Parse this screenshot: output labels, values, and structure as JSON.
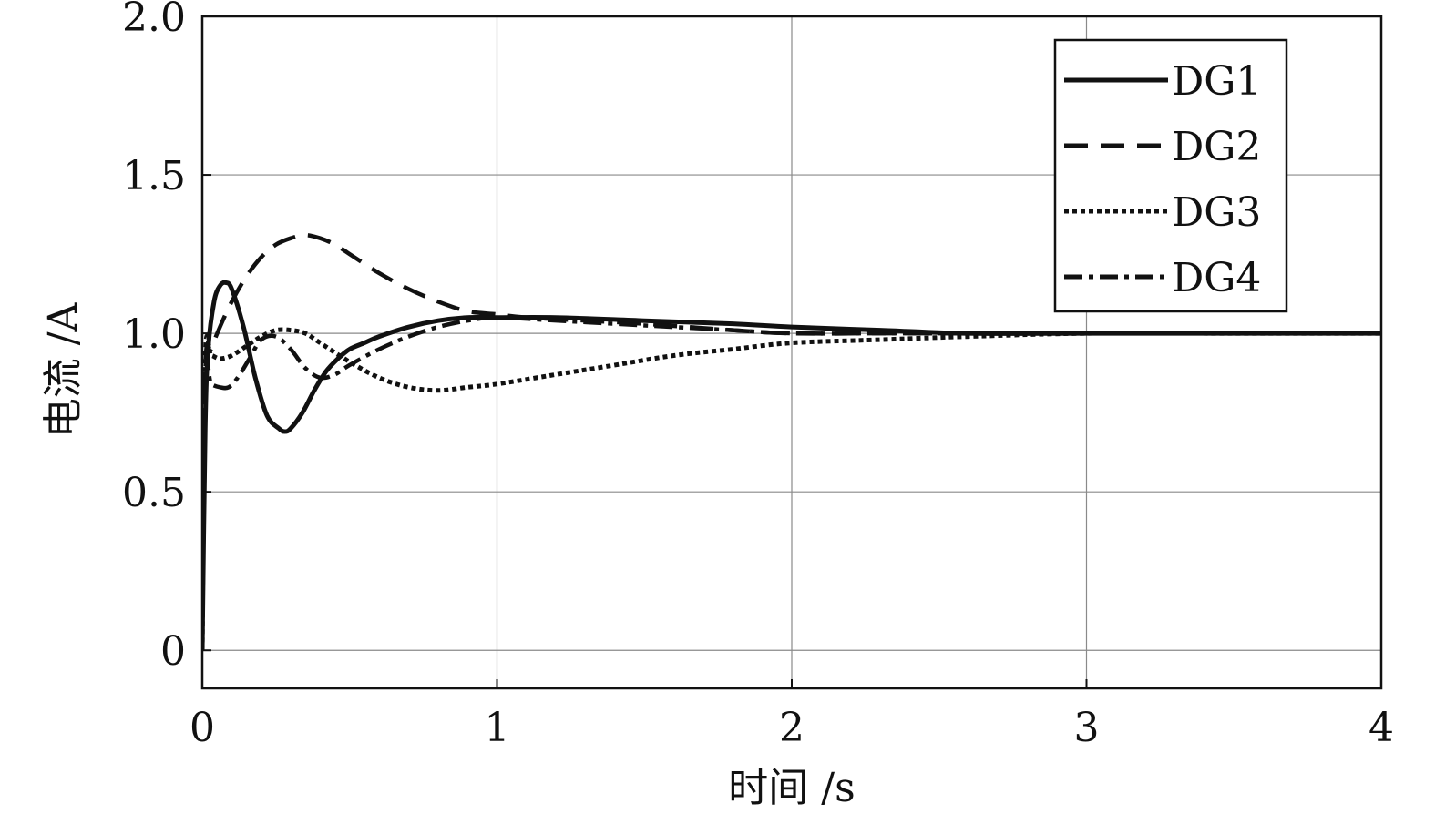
{
  "chart_data": {
    "type": "line",
    "xlabel": "时间 /s",
    "ylabel": "电流 /A",
    "xlim": [
      0,
      4
    ],
    "ylim": [
      -0.12,
      2.0
    ],
    "xticks": [
      0,
      1,
      2,
      3,
      4
    ],
    "xtick_labels": [
      "0",
      "1",
      "2",
      "3",
      "4"
    ],
    "yticks": [
      0,
      0.5,
      1.0,
      1.5,
      2.0
    ],
    "ytick_labels": [
      "0",
      "0.5",
      "1.0",
      "1.5",
      "2.0"
    ],
    "grid": true,
    "legend": {
      "position": "top-right"
    },
    "series": [
      {
        "name": "DG1",
        "style": "solid",
        "color": "#111111",
        "x": [
          0,
          0.01,
          0.02,
          0.04,
          0.06,
          0.08,
          0.1,
          0.14,
          0.18,
          0.22,
          0.26,
          0.28,
          0.3,
          0.34,
          0.38,
          0.42,
          0.46,
          0.5,
          0.55,
          0.6,
          0.7,
          0.8,
          0.9,
          1.0,
          1.2,
          1.5,
          1.8,
          2.0,
          2.3,
          2.6,
          3.0,
          3.5,
          4.0
        ],
        "y": [
          0,
          0.7,
          0.95,
          1.1,
          1.15,
          1.16,
          1.14,
          1.02,
          0.86,
          0.74,
          0.7,
          0.69,
          0.7,
          0.75,
          0.82,
          0.88,
          0.92,
          0.95,
          0.97,
          0.99,
          1.02,
          1.04,
          1.05,
          1.05,
          1.05,
          1.04,
          1.03,
          1.02,
          1.01,
          1.0,
          1.0,
          1.0,
          1.0
        ]
      },
      {
        "name": "DG2",
        "style": "dashed",
        "color": "#111111",
        "x": [
          0,
          0.01,
          0.03,
          0.06,
          0.1,
          0.15,
          0.2,
          0.25,
          0.3,
          0.35,
          0.4,
          0.45,
          0.5,
          0.6,
          0.7,
          0.8,
          0.9,
          1.0,
          1.1,
          1.3,
          1.5,
          1.8,
          2.0,
          2.3,
          2.6,
          3.0,
          3.5,
          4.0
        ],
        "y": [
          0,
          0.88,
          0.95,
          1.02,
          1.1,
          1.18,
          1.24,
          1.28,
          1.3,
          1.31,
          1.3,
          1.28,
          1.25,
          1.19,
          1.14,
          1.1,
          1.07,
          1.06,
          1.05,
          1.04,
          1.03,
          1.01,
          1.0,
          1.0,
          1.0,
          1.0,
          1.0,
          1.0
        ]
      },
      {
        "name": "DG3",
        "style": "dotted",
        "color": "#111111",
        "x": [
          0,
          0.01,
          0.03,
          0.06,
          0.1,
          0.15,
          0.2,
          0.25,
          0.3,
          0.35,
          0.4,
          0.5,
          0.6,
          0.7,
          0.8,
          0.9,
          1.0,
          1.2,
          1.4,
          1.6,
          1.8,
          2.0,
          2.3,
          2.6,
          3.0,
          3.5,
          4.0
        ],
        "y": [
          0,
          0.92,
          0.93,
          0.92,
          0.93,
          0.96,
          0.99,
          1.01,
          1.01,
          1.0,
          0.97,
          0.91,
          0.86,
          0.83,
          0.82,
          0.83,
          0.84,
          0.87,
          0.9,
          0.93,
          0.95,
          0.97,
          0.98,
          0.99,
          1.0,
          1.0,
          1.0
        ]
      },
      {
        "name": "DG4",
        "style": "dashdot",
        "color": "#111111",
        "x": [
          0,
          0.01,
          0.03,
          0.06,
          0.09,
          0.12,
          0.16,
          0.2,
          0.25,
          0.3,
          0.35,
          0.4,
          0.45,
          0.5,
          0.6,
          0.7,
          0.8,
          0.9,
          1.0,
          1.2,
          1.4,
          1.6,
          1.8,
          2.0,
          2.3,
          2.6,
          3.0,
          3.5,
          4.0
        ],
        "y": [
          0,
          0.86,
          0.84,
          0.83,
          0.83,
          0.86,
          0.92,
          0.98,
          0.99,
          0.95,
          0.89,
          0.86,
          0.87,
          0.9,
          0.95,
          0.99,
          1.02,
          1.04,
          1.05,
          1.04,
          1.03,
          1.02,
          1.01,
          1.0,
          1.0,
          1.0,
          1.0,
          1.0,
          1.0
        ]
      }
    ]
  }
}
